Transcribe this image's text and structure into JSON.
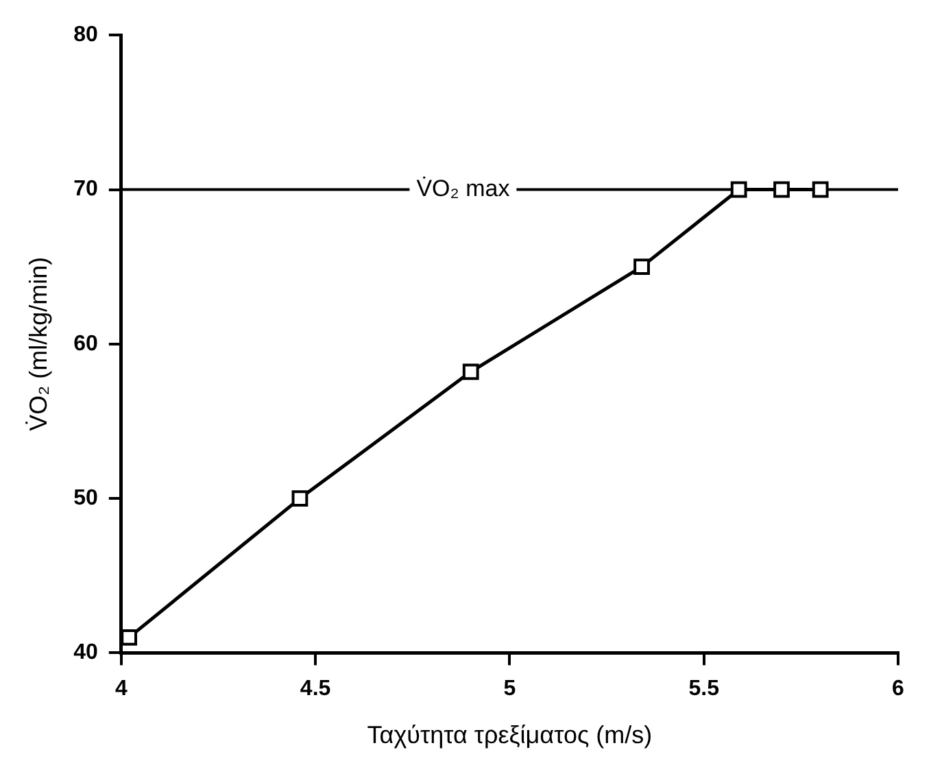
{
  "chart_data": {
    "type": "line",
    "xlabel": "Ταχύτητα τρεξίματος (m/s)",
    "ylabel": "V̇O₂ (ml/kg/min)",
    "x": [
      4.02,
      4.46,
      4.9,
      5.34,
      5.59,
      5.7,
      5.8
    ],
    "series": [
      {
        "color": "#000000",
        "values": [
          41,
          50,
          58.2,
          65,
          70,
          70,
          70
        ]
      }
    ],
    "xlim": [
      4,
      6
    ],
    "xticks": [
      4,
      4.5,
      5,
      5.5,
      6
    ],
    "ylim": [
      40,
      80
    ],
    "yticks": [
      40,
      50,
      60,
      70,
      80
    ],
    "marker": "square",
    "line_style": "solid",
    "grid": false,
    "legend": false,
    "ref_lines": [
      {
        "axis": "y",
        "value": 70,
        "label": "V̇O₂ max",
        "color": "#000000"
      }
    ]
  }
}
